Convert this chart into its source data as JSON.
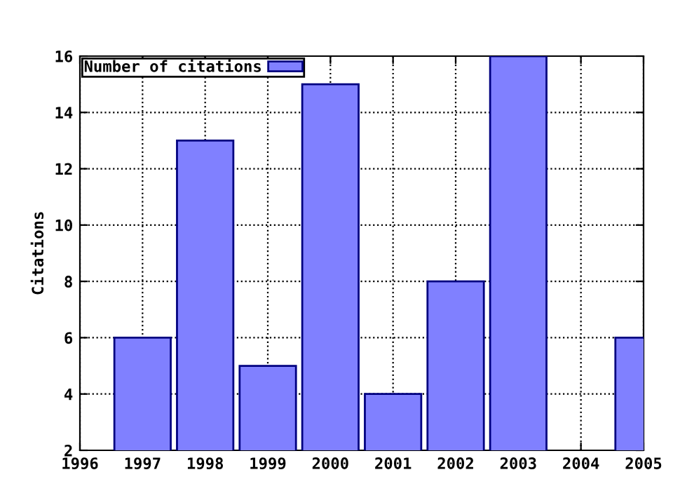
{
  "chart_data": {
    "type": "bar",
    "ylabel": "Citations",
    "x": [
      1997,
      1998,
      1999,
      2000,
      2001,
      2002,
      2003,
      2004,
      2005
    ],
    "series": [
      {
        "name": "Number of citations",
        "color": "#8080ff",
        "values": [
          6,
          13,
          5,
          15,
          4,
          8,
          16,
          null,
          6
        ]
      }
    ],
    "xlim": [
      1996,
      2005
    ],
    "xticks": [
      1996,
      1997,
      1998,
      1999,
      2000,
      2001,
      2002,
      2003,
      2004,
      2005
    ],
    "ylim": [
      2,
      16
    ],
    "yticks": [
      2,
      4,
      6,
      8,
      10,
      12,
      14,
      16
    ],
    "grid": true,
    "legend": "top left"
  }
}
